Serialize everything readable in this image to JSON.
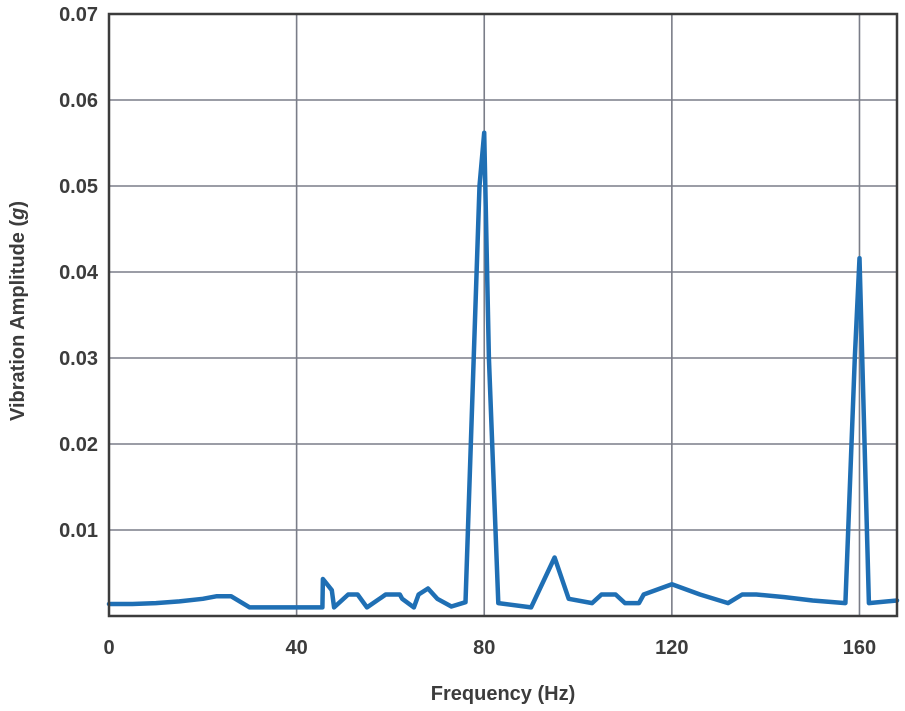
{
  "chart_data": {
    "type": "line",
    "xlabel": "Frequency (Hz)",
    "ylabel_parts": [
      "Vibration Amplitude (",
      "g",
      ")"
    ],
    "xlim": [
      0,
      168
    ],
    "ylim": [
      0,
      0.07
    ],
    "xticks": [
      0,
      40,
      80,
      120,
      160
    ],
    "xtick_labels": [
      "0",
      "40",
      "80",
      "120",
      "160"
    ],
    "yticks": [
      0.01,
      0.02,
      0.03,
      0.04,
      0.05,
      0.06,
      0.07
    ],
    "ytick_labels": [
      "0.01",
      "0.02",
      "0.03",
      "0.04",
      "0.05",
      "0.06",
      "0.07"
    ],
    "grid": true,
    "colors": {
      "line": "#1f6fb4",
      "grid": "#7a7d88",
      "frame": "#3c3c3c"
    },
    "series": [
      {
        "x": [
          0,
          5,
          10,
          15,
          20,
          23,
          26,
          30,
          35,
          40,
          45.5,
          45.6,
          47.5,
          48,
          51,
          53,
          55,
          59,
          62,
          62.5,
          65,
          66,
          68,
          70,
          73,
          76,
          79,
          80,
          81,
          83,
          90,
          95,
          98,
          103,
          105,
          108,
          110,
          113,
          114,
          120,
          126,
          132,
          135,
          138,
          144,
          150,
          157,
          159,
          160,
          162,
          168
        ],
        "values": [
          0.0014,
          0.0014,
          0.0015,
          0.0017,
          0.002,
          0.0023,
          0.0023,
          0.001,
          0.001,
          0.001,
          0.001,
          0.0043,
          0.003,
          0.001,
          0.0025,
          0.0025,
          0.001,
          0.0025,
          0.0025,
          0.002,
          0.001,
          0.0025,
          0.0032,
          0.002,
          0.0011,
          0.0016,
          0.05,
          0.0562,
          0.03,
          0.0015,
          0.001,
          0.0068,
          0.002,
          0.0015,
          0.0025,
          0.0025,
          0.0015,
          0.0015,
          0.0025,
          0.0037,
          0.0025,
          0.0015,
          0.0025,
          0.0025,
          0.0022,
          0.0018,
          0.0015,
          0.03,
          0.0416,
          0.0015,
          0.0018
        ]
      }
    ]
  }
}
